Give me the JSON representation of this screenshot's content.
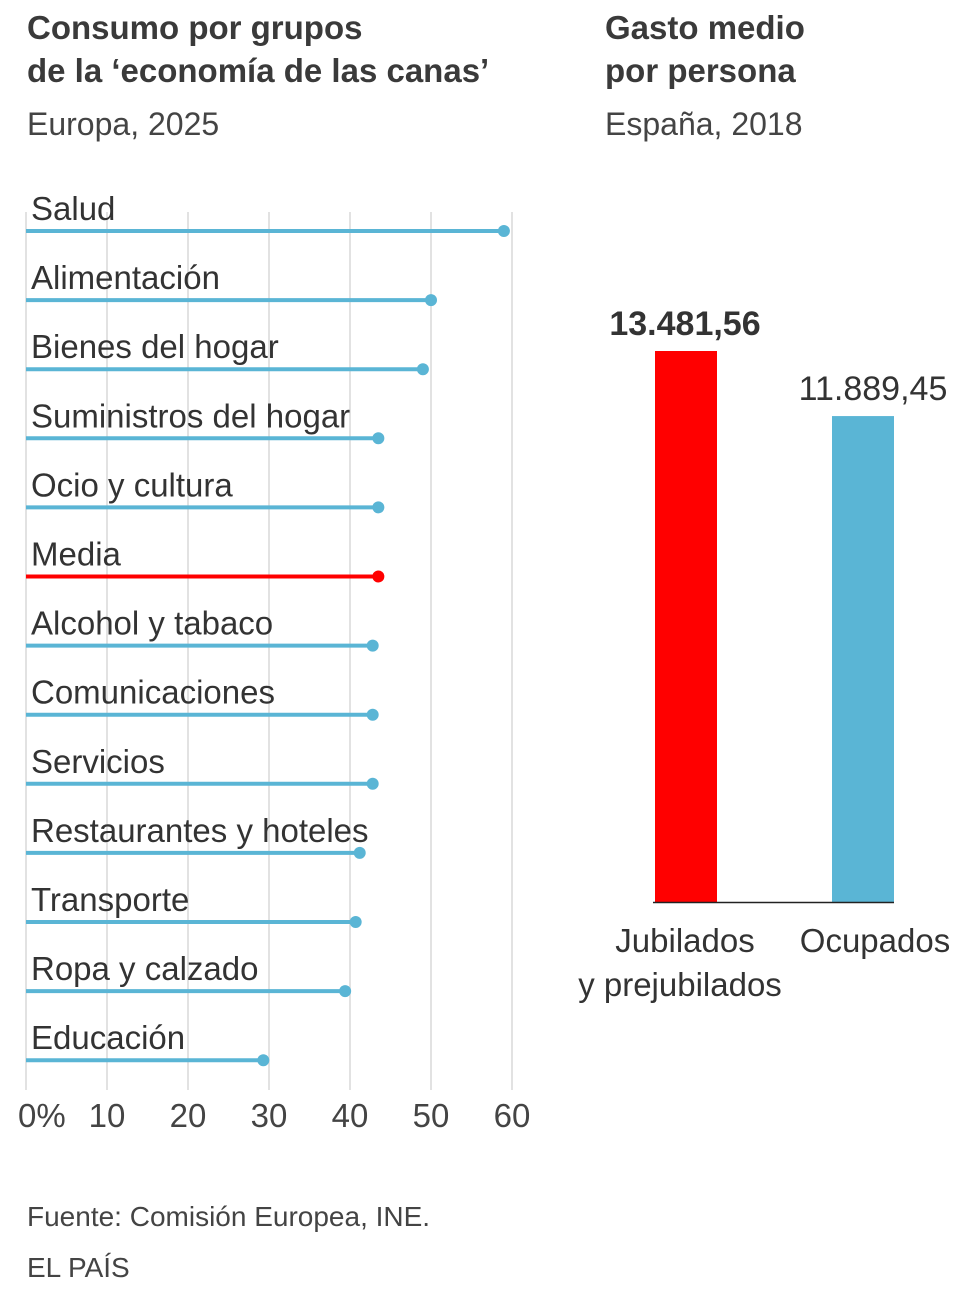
{
  "left_panel": {
    "title_line1": "Consumo por grupos",
    "title_line2": "de la ‘economía de las canas’",
    "subtitle": "Europa, 2025"
  },
  "right_panel": {
    "title_line1": "Gasto medio",
    "title_line2": "por persona",
    "subtitle": "España, 2018"
  },
  "footer": {
    "source": "Fuente: Comisión Europea, INE.",
    "brand": "EL PAÍS"
  },
  "colors": {
    "series": "#5ab5d5",
    "highlight": "#ff0000",
    "grid": "#d9d9d9",
    "text": "#333333"
  },
  "chart_data": [
    {
      "type": "bar",
      "orientation": "horizontal",
      "title": "Consumo por grupos de la ‘economía de las canas’",
      "subtitle": "Europa, 2025",
      "categories": [
        "Salud",
        "Alimentación",
        "Bienes del hogar",
        "Suministros del hogar",
        "Ocio y cultura",
        "Media",
        "Alcohol y tabaco",
        "Comunicaciones",
        "Servicios",
        "Restaurantes y hoteles",
        "Transporte",
        "Ropa y calzado",
        "Educación"
      ],
      "values": [
        59,
        50,
        49,
        43.5,
        43.5,
        43.5,
        42.8,
        42.8,
        42.8,
        41.2,
        40.7,
        39.4,
        29.3
      ],
      "highlight_category": "Media",
      "xlim": [
        0,
        60
      ],
      "xticks": [
        0,
        10,
        20,
        30,
        40,
        50,
        60
      ],
      "xtick_labels": [
        "0%",
        "10",
        "20",
        "30",
        "40",
        "50",
        "60"
      ],
      "grid": true
    },
    {
      "type": "bar",
      "title": "Gasto medio por persona",
      "subtitle": "España, 2018",
      "categories": [
        "Jubilados y prejubilados",
        "Ocupados"
      ],
      "category_lines": [
        [
          "Jubilados",
          "y prejubilados"
        ],
        [
          "Ocupados"
        ]
      ],
      "values": [
        13481.56,
        11889.45
      ],
      "value_labels": [
        "13.481,56",
        "11.889,45"
      ],
      "colors": [
        "#ff0000",
        "#5ab5d5"
      ],
      "ylim": [
        0,
        13481.56
      ]
    }
  ]
}
